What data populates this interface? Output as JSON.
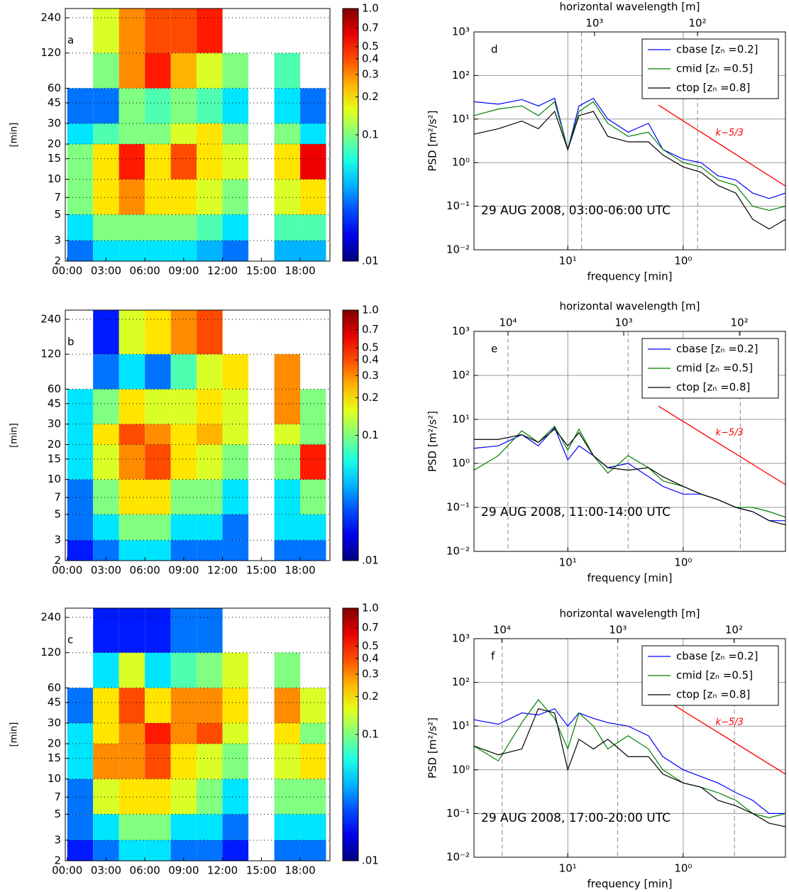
{
  "chart_data": [
    {
      "type": "heatmap",
      "label": "a",
      "ylabel": "[min]",
      "xbins": [
        0,
        2,
        4,
        6,
        8,
        10,
        12,
        14,
        16,
        18,
        20
      ],
      "ybins": [
        2,
        3,
        5,
        10,
        20,
        30,
        60,
        120,
        288
      ],
      "values": [
        [
          0.03,
          0.05,
          0.05,
          0.05,
          0.05,
          0.04,
          0.03,
          null,
          0.04,
          0.04
        ],
        [
          0.05,
          0.1,
          0.1,
          0.1,
          0.1,
          0.08,
          0.05,
          null,
          0.08,
          0.08
        ],
        [
          0.1,
          0.2,
          0.3,
          0.2,
          0.2,
          0.15,
          0.1,
          null,
          0.15,
          0.2
        ],
        [
          0.1,
          0.2,
          0.5,
          0.2,
          0.4,
          0.2,
          0.15,
          null,
          0.2,
          0.6
        ],
        [
          0.05,
          0.08,
          0.1,
          0.1,
          0.15,
          0.2,
          0.1,
          null,
          0.1,
          0.05
        ],
        [
          0.03,
          0.03,
          0.1,
          0.08,
          0.1,
          0.08,
          0.05,
          null,
          0.05,
          0.03
        ],
        [
          null,
          0.1,
          0.3,
          0.5,
          0.25,
          0.15,
          0.1,
          null,
          0.08,
          null
        ],
        [
          null,
          0.15,
          0.3,
          0.4,
          0.4,
          0.5,
          null,
          null,
          null,
          null
        ]
      ],
      "xlim": [
        -0.15,
        20.3
      ],
      "xticks": [
        {
          "value": 0,
          "label": "00:00"
        },
        {
          "value": 3,
          "label": "03:00"
        },
        {
          "value": 6,
          "label": "06:00"
        },
        {
          "value": 9,
          "label": "09:00"
        },
        {
          "value": 12,
          "label": "12:00"
        },
        {
          "value": 15,
          "label": "15:00"
        },
        {
          "value": 18,
          "label": "18:00"
        }
      ],
      "ylim": [
        2,
        288
      ],
      "ylog": true,
      "yticks": [
        2,
        3,
        5,
        7,
        10,
        15,
        20,
        30,
        45,
        60,
        120,
        240
      ],
      "grid": true,
      "colorbar": {
        "lim": [
          0.01,
          1
        ],
        "log": true,
        "colormap": "jet",
        "ticks": [
          {
            "value": 1,
            "label": "1.0"
          },
          0.7,
          0.5,
          0.4,
          0.3,
          0.2,
          0.1,
          {
            "value": 0.01,
            "label": ".01"
          }
        ]
      }
    },
    {
      "type": "heatmap",
      "label": "b",
      "ylabel": "[min]",
      "xbins": [
        0,
        2,
        4,
        6,
        8,
        10,
        12,
        14,
        16,
        18,
        20
      ],
      "ybins": [
        2,
        3,
        5,
        10,
        20,
        30,
        60,
        120,
        288
      ],
      "values": [
        [
          0.02,
          0.03,
          0.05,
          0.05,
          0.03,
          0.03,
          0.03,
          null,
          0.03,
          0.03
        ],
        [
          0.03,
          0.05,
          0.1,
          0.1,
          0.05,
          0.05,
          0.03,
          null,
          0.05,
          0.05
        ],
        [
          0.03,
          0.1,
          0.2,
          0.2,
          0.1,
          0.1,
          0.05,
          null,
          0.05,
          0.1
        ],
        [
          0.05,
          0.15,
          0.3,
          0.4,
          0.2,
          0.15,
          0.1,
          null,
          0.1,
          0.5
        ],
        [
          0.05,
          0.2,
          0.4,
          0.3,
          0.2,
          0.25,
          0.15,
          null,
          0.15,
          0.1
        ],
        [
          0.05,
          0.1,
          0.2,
          0.15,
          0.15,
          0.2,
          0.15,
          null,
          0.3,
          0.1
        ],
        [
          null,
          0.03,
          0.05,
          0.03,
          0.08,
          0.15,
          0.2,
          null,
          0.3,
          null
        ],
        [
          null,
          0.02,
          0.15,
          0.2,
          0.3,
          0.4,
          null,
          null,
          null,
          null
        ]
      ],
      "xlim": [
        -0.15,
        20.3
      ],
      "xticks": [
        {
          "value": 0,
          "label": "00:00"
        },
        {
          "value": 3,
          "label": "03:00"
        },
        {
          "value": 6,
          "label": "06:00"
        },
        {
          "value": 9,
          "label": "09:00"
        },
        {
          "value": 12,
          "label": "12:00"
        },
        {
          "value": 15,
          "label": "15:00"
        },
        {
          "value": 18,
          "label": "18:00"
        }
      ],
      "ylim": [
        2,
        288
      ],
      "ylog": true,
      "yticks": [
        2,
        3,
        5,
        7,
        10,
        15,
        20,
        30,
        45,
        60,
        120,
        240
      ],
      "grid": true,
      "colorbar": {
        "lim": [
          0.01,
          1
        ],
        "log": true,
        "colormap": "jet",
        "ticks": [
          {
            "value": 1,
            "label": "1.0"
          },
          0.7,
          0.5,
          0.4,
          0.3,
          0.2,
          0.1,
          {
            "value": 0.01,
            "label": ".01"
          }
        ]
      }
    },
    {
      "type": "heatmap",
      "label": "c",
      "ylabel": "[min]",
      "xbins": [
        0,
        2,
        4,
        6,
        8,
        10,
        12,
        14,
        16,
        18,
        20
      ],
      "ybins": [
        2,
        3,
        5,
        10,
        20,
        30,
        60,
        120,
        288
      ],
      "values": [
        [
          0.02,
          0.03,
          0.05,
          0.05,
          0.03,
          0.03,
          0.02,
          null,
          0.03,
          0.03
        ],
        [
          0.03,
          0.05,
          0.1,
          0.1,
          0.05,
          0.05,
          0.03,
          null,
          0.05,
          0.05
        ],
        [
          0.03,
          0.15,
          0.2,
          0.2,
          0.15,
          0.1,
          0.05,
          null,
          0.1,
          0.1
        ],
        [
          0.05,
          0.3,
          0.3,
          0.4,
          0.2,
          0.15,
          0.1,
          null,
          0.15,
          0.2
        ],
        [
          0.05,
          0.2,
          0.3,
          0.5,
          0.3,
          0.4,
          0.15,
          null,
          0.2,
          0.1
        ],
        [
          0.03,
          0.2,
          0.4,
          0.2,
          0.3,
          0.3,
          0.2,
          null,
          0.3,
          0.15
        ],
        [
          null,
          0.05,
          0.15,
          0.05,
          0.08,
          0.1,
          0.15,
          null,
          0.1,
          null
        ],
        [
          null,
          0.02,
          0.02,
          0.02,
          0.03,
          0.03,
          null,
          null,
          null,
          null
        ]
      ],
      "xlim": [
        -0.15,
        20.3
      ],
      "xticks": [
        {
          "value": 0,
          "label": "00:00"
        },
        {
          "value": 3,
          "label": "03:00"
        },
        {
          "value": 6,
          "label": "06:00"
        },
        {
          "value": 9,
          "label": "09:00"
        },
        {
          "value": 12,
          "label": "12:00"
        },
        {
          "value": 15,
          "label": "15:00"
        },
        {
          "value": 18,
          "label": "18:00"
        }
      ],
      "ylim": [
        2,
        288
      ],
      "ylog": true,
      "yticks": [
        2,
        3,
        5,
        7,
        10,
        15,
        20,
        30,
        45,
        60,
        120,
        240
      ],
      "grid": true,
      "colorbar": {
        "lim": [
          0.01,
          1
        ],
        "log": true,
        "colormap": "jet",
        "ticks": [
          {
            "value": 1,
            "label": "1.0"
          },
          0.7,
          0.5,
          0.4,
          0.3,
          0.2,
          0.1,
          {
            "value": 0.01,
            "label": ".01"
          }
        ]
      }
    },
    {
      "type": "line",
      "label": "d",
      "annotation": "29 AUG 2008, 03:00-06:00 UTC",
      "xlabel": "frequency [min]",
      "ylabel": "PSD  [m²/s²]",
      "x2label": "horizontal wavelength [m]",
      "x": [
        65,
        40,
        25,
        18,
        13,
        10,
        8,
        6,
        4.5,
        3,
        2,
        1.5,
        1,
        0.7,
        0.5,
        0.35,
        0.25,
        0.18,
        0.13
      ],
      "series": [
        {
          "name": "cbase [zₙ =0.2]",
          "color": "#0000ff",
          "values": [
            25,
            22,
            28,
            20,
            30,
            2,
            20,
            30,
            10,
            5,
            8,
            2,
            1.2,
            1,
            0.5,
            0.4,
            0.2,
            0.15,
            0.2
          ]
        },
        {
          "name": "cmid [zₙ =0.5]",
          "color": "#007f00",
          "values": [
            12,
            17,
            20,
            12,
            25,
            2,
            15,
            25,
            8,
            4,
            5,
            2,
            1,
            0.8,
            0.4,
            0.3,
            0.1,
            0.08,
            0.1
          ]
        },
        {
          "name": "ctop [zₙ =0.8]",
          "color": "#000000",
          "values": [
            4.5,
            6,
            9,
            6,
            15,
            2,
            12,
            15,
            4,
            3,
            3,
            1.5,
            0.8,
            0.6,
            0.3,
            0.2,
            0.05,
            0.03,
            0.05
          ]
        }
      ],
      "reference_line": {
        "label": "k−5/3",
        "color": "#ff0000",
        "x": [
          1.64,
          0.13
        ],
        "values": [
          21,
          0.29
        ]
      },
      "vlines": [
        7.6,
        0.75
      ],
      "xlog": true,
      "ylog": true,
      "xlim": [
        65,
        0.13
      ],
      "ylim": [
        0.01,
        1000
      ],
      "xticks": [
        {
          "value": 10,
          "label": "10¹"
        },
        {
          "value": 1,
          "label": "10⁰"
        }
      ],
      "yticks": [
        {
          "value": 0.01,
          "label": "10⁻²"
        },
        {
          "value": 0.1,
          "label": "10⁻¹"
        },
        {
          "value": 1,
          "label": "10⁰"
        },
        {
          "value": 10,
          "label": "10¹"
        },
        {
          "value": 100,
          "label": "10²"
        },
        {
          "value": 1000,
          "label": "10³"
        }
      ],
      "x2lim": [
        14800,
        14
      ],
      "x2ticks": [
        {
          "value": 1000,
          "label": "10³"
        },
        {
          "value": 100,
          "label": "10²"
        }
      ],
      "grid": true,
      "legend": "upper right"
    },
    {
      "type": "line",
      "label": "e",
      "annotation": "29 AUG 2008, 11:00-14:00 UTC",
      "xlabel": "frequency [min]",
      "ylabel": "PSD  [m²/s²]",
      "x2label": "horizontal wavelength [m]",
      "x": [
        65,
        40,
        25,
        18,
        13,
        10,
        8,
        6,
        4.5,
        3,
        2,
        1.5,
        1,
        0.7,
        0.5,
        0.35,
        0.25,
        0.18,
        0.13
      ],
      "series": [
        {
          "name": "cbase [zₙ =0.2]",
          "color": "#0000ff",
          "values": [
            2.2,
            2.5,
            4.5,
            2.5,
            6.5,
            1.2,
            2.5,
            1.5,
            0.8,
            1,
            0.5,
            0.3,
            0.2,
            0.2,
            0.15,
            0.1,
            0.08,
            0.05,
            0.05
          ]
        },
        {
          "name": "cmid [zₙ =0.5]",
          "color": "#007f00",
          "values": [
            0.7,
            1.5,
            5.5,
            3,
            7,
            2,
            6,
            1.5,
            0.6,
            1.5,
            0.8,
            0.4,
            0.3,
            0.2,
            0.15,
            0.1,
            0.1,
            0.08,
            0.06
          ]
        },
        {
          "name": "ctop [zₙ =0.8]",
          "color": "#000000",
          "values": [
            3.5,
            3.5,
            4.5,
            3,
            6,
            2.5,
            5,
            1.5,
            0.8,
            0.7,
            0.8,
            0.5,
            0.3,
            0.2,
            0.15,
            0.1,
            0.08,
            0.05,
            0.04
          ]
        }
      ],
      "reference_line": {
        "label": "k−5/3",
        "color": "#ff0000",
        "x": [
          1.64,
          0.13
        ],
        "values": [
          20,
          0.33
        ]
      },
      "vlines": [
        33,
        3,
        0.32
      ],
      "xlog": true,
      "ylog": true,
      "xlim": [
        65,
        0.13
      ],
      "ylim": [
        0.01,
        1000
      ],
      "xticks": [
        {
          "value": 10,
          "label": "10¹"
        },
        {
          "value": 1,
          "label": "10⁰"
        }
      ],
      "yticks": [
        {
          "value": 0.01,
          "label": "10⁻²"
        },
        {
          "value": 0.1,
          "label": "10⁻¹"
        },
        {
          "value": 1,
          "label": "10⁰"
        },
        {
          "value": 10,
          "label": "10¹"
        },
        {
          "value": 100,
          "label": "10²"
        },
        {
          "value": 1000,
          "label": "10³"
        }
      ],
      "x2lim": [
        19700,
        40
      ],
      "x2ticks": [
        {
          "value": 10000,
          "label": "10⁴"
        },
        {
          "value": 1000,
          "label": "10³"
        },
        {
          "value": 100,
          "label": "10²"
        }
      ],
      "grid": true,
      "legend": "upper right"
    },
    {
      "type": "line",
      "label": "f",
      "annotation": "29 AUG 2008, 17:00-20:00 UTC",
      "xlabel": "frequency [min]",
      "ylabel": "PSD  [m²/s²]",
      "x2label": "horizontal wavelength [m]",
      "x": [
        65,
        40,
        25,
        18,
        13,
        10,
        8,
        6,
        4.5,
        3,
        2,
        1.5,
        1,
        0.7,
        0.5,
        0.35,
        0.25,
        0.18,
        0.13
      ],
      "series": [
        {
          "name": "cbase [zₙ =0.2]",
          "color": "#0000ff",
          "values": [
            14,
            11,
            20,
            18,
            25,
            10,
            20,
            15,
            12,
            10,
            6,
            2,
            1,
            0.7,
            0.5,
            0.3,
            0.2,
            0.1,
            0.1
          ]
        },
        {
          "name": "cmid [zₙ =0.5]",
          "color": "#007f00",
          "values": [
            3.5,
            1.6,
            12,
            40,
            15,
            3,
            20,
            10,
            3,
            6,
            3,
            1,
            0.5,
            0.4,
            0.3,
            0.2,
            0.1,
            0.08,
            0.1
          ]
        },
        {
          "name": "ctop [zₙ =0.8]",
          "color": "#000000",
          "values": [
            3.5,
            2.2,
            3,
            25,
            20,
            1,
            5,
            3,
            5,
            2,
            2,
            0.8,
            0.5,
            0.4,
            0.2,
            0.15,
            0.1,
            0.06,
            0.05
          ]
        }
      ],
      "reference_line": {
        "label": "k−5/3",
        "color": "#ff0000",
        "x": [
          1.64,
          0.13
        ],
        "values": [
          50,
          0.8
        ]
      },
      "vlines": [
        37,
        3.7,
        0.36
      ],
      "xlog": true,
      "ylog": true,
      "xlim": [
        65,
        0.13
      ],
      "ylim": [
        0.01,
        1000
      ],
      "xticks": [
        {
          "value": 10,
          "label": "10¹"
        },
        {
          "value": 1,
          "label": "10⁰"
        }
      ],
      "yticks": [
        {
          "value": 0.01,
          "label": "10⁻²"
        },
        {
          "value": 0.1,
          "label": "10⁻¹"
        },
        {
          "value": 1,
          "label": "10⁰"
        },
        {
          "value": 10,
          "label": "10¹"
        },
        {
          "value": 100,
          "label": "10²"
        },
        {
          "value": 1000,
          "label": "10³"
        }
      ],
      "x2lim": [
        17400,
        36
      ],
      "x2ticks": [
        {
          "value": 10000,
          "label": "10⁴"
        },
        {
          "value": 1000,
          "label": "10³"
        },
        {
          "value": 100,
          "label": "10²"
        }
      ],
      "grid": true,
      "legend": "upper right"
    }
  ]
}
